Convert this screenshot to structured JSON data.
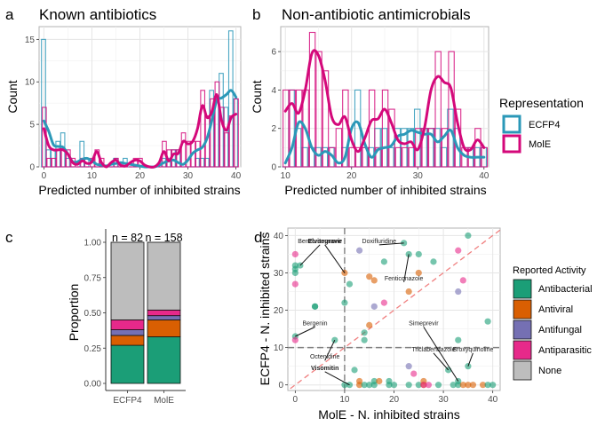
{
  "colors": {
    "ecfp4": "#2b98b8",
    "mole": "#d4087a",
    "Antibacterial": "#1b9e77",
    "Antiviral": "#d95f02",
    "Antifungal": "#7570b3",
    "Antiparasitic": "#e7298a",
    "None": "#bdbdbd"
  },
  "chart_data": [
    {
      "panel": "a",
      "type": "bar",
      "title": "Known antibiotics",
      "xlabel": "Predicted number of inhibited strains",
      "ylabel": "Count",
      "xlim": [
        -1,
        41
      ],
      "ylim": [
        0,
        16.5
      ],
      "xticks": [
        0,
        10,
        20,
        30,
        40
      ],
      "yticks": [
        0,
        5,
        10,
        15
      ],
      "grid": true,
      "x": [
        0,
        1,
        2,
        3,
        4,
        5,
        6,
        7,
        8,
        9,
        10,
        11,
        12,
        13,
        14,
        15,
        16,
        17,
        18,
        19,
        20,
        21,
        22,
        23,
        24,
        25,
        26,
        27,
        28,
        29,
        30,
        31,
        32,
        33,
        34,
        35,
        36,
        37,
        38,
        39,
        40
      ],
      "series": [
        {
          "name": "ECFP4",
          "values": [
            15,
            2,
            2,
            3,
            4,
            1,
            0,
            0,
            3,
            1,
            0,
            0,
            0,
            0,
            0,
            1,
            0,
            1,
            0,
            0,
            0,
            0,
            0,
            0,
            0,
            1,
            1,
            2,
            2,
            0,
            0,
            0,
            1,
            1,
            1,
            9,
            8,
            11,
            7,
            16,
            8
          ],
          "density": [
            5.4,
            4.2,
            2.6,
            2.4,
            2.3,
            1.5,
            0.6,
            0.6,
            0.9,
            1.0,
            0.7,
            0.3,
            0.2,
            0.1,
            0.3,
            0.4,
            0.5,
            0.4,
            0.3,
            0.2,
            0.1,
            0.0,
            0.0,
            0.0,
            0.2,
            0.5,
            0.7,
            0.8,
            0.5,
            0.3,
            0.8,
            1.6,
            2.0,
            2.3,
            3.4,
            5.5,
            7.8,
            8.1,
            8.5,
            9.0,
            8.2
          ]
        },
        {
          "name": "MolE",
          "values": [
            7,
            1,
            1,
            2,
            2,
            2,
            1,
            0,
            1,
            0,
            1,
            2,
            1,
            0,
            0,
            1,
            0,
            0,
            0,
            1,
            1,
            0,
            0,
            0,
            0,
            3,
            2,
            2,
            2,
            4,
            3,
            3,
            3,
            9,
            6,
            8,
            10,
            7,
            4,
            6,
            8
          ],
          "density": [
            4.5,
            2.5,
            2.0,
            2.0,
            2.0,
            1.5,
            0.5,
            0.3,
            0.7,
            0.4,
            0.6,
            1.8,
            0.5,
            0.0,
            0.5,
            0.8,
            0.2,
            0.1,
            0.5,
            0.8,
            0.7,
            0.2,
            0.0,
            0.0,
            0.5,
            1.8,
            0.7,
            1.5,
            1.6,
            3.0,
            2.7,
            3.0,
            4.5,
            7.2,
            5.8,
            6.5,
            8.5,
            5.5,
            4.3,
            5.8,
            6.2
          ]
        }
      ]
    },
    {
      "panel": "b",
      "type": "bar",
      "title": "Non-antibiotic antimicrobials",
      "xlabel": "Predicted number of inhibited strains",
      "ylabel": "Count",
      "xlim": [
        9.3,
        40.7
      ],
      "ylim": [
        0,
        7.3
      ],
      "xticks": [
        10,
        20,
        30,
        40
      ],
      "yticks": [
        0,
        2,
        4,
        6
      ],
      "grid": true,
      "x": [
        10,
        11,
        12,
        13,
        14,
        15,
        16,
        17,
        18,
        19,
        20,
        21,
        22,
        23,
        24,
        25,
        26,
        27,
        28,
        29,
        30,
        31,
        32,
        33,
        34,
        35,
        36,
        37,
        38,
        39,
        40
      ],
      "series": [
        {
          "name": "ECFP4",
          "values": [
            0,
            4,
            2,
            1,
            1,
            1,
            1,
            1,
            0,
            1,
            0,
            4,
            1,
            1,
            2,
            2,
            1,
            2,
            2,
            2,
            3,
            2,
            2,
            2,
            1,
            3,
            2,
            0,
            1,
            1,
            1
          ],
          "density": [
            0.2,
            1.0,
            2.3,
            2.0,
            1.0,
            0.6,
            0.8,
            0.6,
            0.2,
            0.5,
            2.0,
            2.3,
            1.2,
            0.5,
            0.9,
            1.0,
            1.1,
            1.6,
            1.7,
            1.9,
            1.8,
            1.7,
            1.7,
            1.3,
            1.6,
            1.9,
            1.0,
            0.6,
            0.5,
            0.5,
            0.5
          ]
        },
        {
          "name": "MolE",
          "values": [
            4,
            4,
            4,
            4,
            7,
            6,
            5,
            1,
            2,
            4,
            1,
            1,
            1,
            4,
            1,
            4,
            3,
            1,
            1,
            1,
            2,
            2,
            2,
            6,
            2,
            6,
            3,
            1,
            1,
            2,
            1
          ],
          "density": [
            2.9,
            3.3,
            2.8,
            4.0,
            5.9,
            5.8,
            4.5,
            2.6,
            2.2,
            2.6,
            1.4,
            0.8,
            1.5,
            2.4,
            2.5,
            3.0,
            2.3,
            1.4,
            1.2,
            1.3,
            0.9,
            2.0,
            4.0,
            4.7,
            4.4,
            4.1,
            2.3,
            1.0,
            0.9,
            1.4,
            1.0
          ]
        }
      ]
    },
    {
      "panel": "c",
      "type": "bar",
      "stacked": true,
      "xlabel": "",
      "ylabel": "Proportion",
      "categories": [
        "ECFP4",
        "MolE"
      ],
      "annotations": [
        "n = 82",
        "n = 158"
      ],
      "yticks": [
        "0.00",
        "0.25",
        "0.50",
        "0.75",
        "1.00"
      ],
      "ylim": [
        0,
        1.05
      ],
      "series": [
        {
          "name": "Antibacterial",
          "values": [
            0.27,
            0.33
          ]
        },
        {
          "name": "Antiviral",
          "values": [
            0.07,
            0.12
          ]
        },
        {
          "name": "Antifungal",
          "values": [
            0.04,
            0.03
          ]
        },
        {
          "name": "Antiparasitic",
          "values": [
            0.07,
            0.04
          ]
        },
        {
          "name": "None",
          "values": [
            0.55,
            0.48
          ]
        }
      ]
    },
    {
      "panel": "d",
      "type": "scatter",
      "xlabel": "MolE - N. inhibited strains",
      "ylabel": "ECFP4 - N. inhibited strains",
      "xlim": [
        -1.5,
        41.5
      ],
      "ylim": [
        -1.5,
        42
      ],
      "xticks": [
        0,
        10,
        20,
        30,
        40
      ],
      "yticks": [
        0,
        10,
        20,
        30,
        40
      ],
      "grid": true,
      "reference_lines": {
        "vline": 10,
        "hline": 10,
        "diagonal": true
      },
      "legend_title": "Reported Activity",
      "legend": [
        "Antibacterial",
        "Antiviral",
        "Antifungal",
        "Antiparasitic",
        "None"
      ],
      "points": [
        {
          "x": 0,
          "y": 35,
          "c": "Antiparasitic"
        },
        {
          "x": 0,
          "y": 32,
          "c": "Antibacterial"
        },
        {
          "x": 1,
          "y": 32,
          "c": "Antibacterial"
        },
        {
          "x": 0,
          "y": 31,
          "c": "Antibacterial"
        },
        {
          "x": 0,
          "y": 30,
          "c": "Antibacterial"
        },
        {
          "x": 0,
          "y": 27,
          "c": "Antiparasitic"
        },
        {
          "x": 4,
          "y": 21,
          "c": "Antibacterial"
        },
        {
          "x": 4,
          "y": 21,
          "c": "Antibacterial"
        },
        {
          "x": 0,
          "y": 13,
          "c": "Antibacterial"
        },
        {
          "x": 0,
          "y": 12,
          "c": "Antiparasitic"
        },
        {
          "x": 8,
          "y": 12,
          "c": "Antibacterial"
        },
        {
          "x": 10,
          "y": 30,
          "c": "Antiviral"
        },
        {
          "x": 10,
          "y": 22,
          "c": "Antibacterial"
        },
        {
          "x": 11,
          "y": 27,
          "c": "Antibacterial"
        },
        {
          "x": 13,
          "y": 36,
          "c": "Antifungal"
        },
        {
          "x": 15,
          "y": 29,
          "c": "Antiviral"
        },
        {
          "x": 16,
          "y": 28,
          "c": "Antiviral"
        },
        {
          "x": 16,
          "y": 21,
          "c": "Antifungal"
        },
        {
          "x": 18,
          "y": 33,
          "c": "Antibacterial"
        },
        {
          "x": 18,
          "y": 22,
          "c": "Antiparasitic"
        },
        {
          "x": 22,
          "y": 38,
          "c": "Antibacterial"
        },
        {
          "x": 23,
          "y": 35,
          "c": "Antibacterial"
        },
        {
          "x": 25,
          "y": 35,
          "c": "Antibacterial"
        },
        {
          "x": 25,
          "y": 30,
          "c": "Antiviral"
        },
        {
          "x": 23,
          "y": 25,
          "c": "Antiviral"
        },
        {
          "x": 28,
          "y": 33,
          "c": "Antibacterial"
        },
        {
          "x": 33,
          "y": 36,
          "c": "Antiparasitic"
        },
        {
          "x": 35,
          "y": 40,
          "c": "Antibacterial"
        },
        {
          "x": 34,
          "y": 28,
          "c": "Antiparasitic"
        },
        {
          "x": 33,
          "y": 25,
          "c": "Antifungal"
        },
        {
          "x": 39,
          "y": 17,
          "c": "Antibacterial"
        },
        {
          "x": 15,
          "y": 16,
          "c": "Antiviral"
        },
        {
          "x": 14,
          "y": 14,
          "c": "Antibacterial"
        },
        {
          "x": 14,
          "y": 12,
          "c": "Antibacterial"
        },
        {
          "x": 33,
          "y": 12,
          "c": "Antibacterial"
        },
        {
          "x": 12,
          "y": 4,
          "c": "Antibacterial"
        },
        {
          "x": 23,
          "y": 5,
          "c": "Antifungal"
        },
        {
          "x": 24,
          "y": 3,
          "c": "Antiparasitic"
        },
        {
          "x": 31,
          "y": 4,
          "c": "Antibacterial"
        },
        {
          "x": 33,
          "y": 1,
          "c": "Antibacterial"
        },
        {
          "x": 35,
          "y": 5,
          "c": "Antibacterial"
        },
        {
          "x": 10,
          "y": 0,
          "c": "Antibacterial"
        },
        {
          "x": 11,
          "y": 0,
          "c": "Antibacterial"
        },
        {
          "x": 13,
          "y": 1,
          "c": "Antiviral"
        },
        {
          "x": 13,
          "y": 0,
          "c": "Antiviral"
        },
        {
          "x": 14,
          "y": 0,
          "c": "Antibacterial"
        },
        {
          "x": 15,
          "y": 0,
          "c": "Antibacterial"
        },
        {
          "x": 16,
          "y": 1,
          "c": "Antibacterial"
        },
        {
          "x": 16,
          "y": 0,
          "c": "Antibacterial"
        },
        {
          "x": 17,
          "y": 1,
          "c": "Antiviral"
        },
        {
          "x": 19,
          "y": 1,
          "c": "Antibacterial"
        },
        {
          "x": 19,
          "y": 0,
          "c": "Antibacterial"
        },
        {
          "x": 20,
          "y": 0,
          "c": "Antibacterial"
        },
        {
          "x": 23,
          "y": 0,
          "c": "Antibacterial"
        },
        {
          "x": 25,
          "y": 0,
          "c": "Antibacterial"
        },
        {
          "x": 26,
          "y": 1,
          "c": "Antiviral"
        },
        {
          "x": 26,
          "y": 0,
          "c": "Antiviral"
        },
        {
          "x": 26,
          "y": 0,
          "c": "Antiparasitic"
        },
        {
          "x": 27,
          "y": 0,
          "c": "Antiparasitic"
        },
        {
          "x": 29,
          "y": 0,
          "c": "Antibacterial"
        },
        {
          "x": 32,
          "y": 0,
          "c": "Antibacterial"
        },
        {
          "x": 33,
          "y": 0,
          "c": "Antibacterial"
        },
        {
          "x": 34,
          "y": 0,
          "c": "Antiviral"
        },
        {
          "x": 35,
          "y": 0,
          "c": "Antiviral"
        },
        {
          "x": 36,
          "y": 0,
          "c": "Antiviral"
        },
        {
          "x": 38,
          "y": 0,
          "c": "Antiviral"
        },
        {
          "x": 39,
          "y": 0,
          "c": "Antibacterial"
        },
        {
          "x": 40,
          "y": 0,
          "c": "Antibacterial"
        }
      ],
      "labels": [
        {
          "text": "Bergenin",
          "x": 0,
          "y": 13,
          "lx": 4,
          "ly": 16
        },
        {
          "text": "Octenidine",
          "x": 8,
          "y": 12,
          "lx": 6,
          "ly": 7
        },
        {
          "text": "Visomitin",
          "x": 11,
          "y": 0,
          "lx": 6,
          "ly": 4,
          "bold": true
        },
        {
          "text": "Elvitegravir",
          "x": 10,
          "y": 30,
          "lx": 6,
          "ly": 38,
          "bold": true
        },
        {
          "text": "Benzbromarone",
          "x": 1,
          "y": 32,
          "lx": 5,
          "ly": 38
        },
        {
          "text": "Doxifluridine",
          "x": 22,
          "y": 38,
          "lx": 17,
          "ly": 38
        },
        {
          "text": "Fenticonazole",
          "x": 23,
          "y": 35,
          "lx": 22,
          "ly": 28
        },
        {
          "text": "Simeprevir",
          "x": 33,
          "y": 1,
          "lx": 26,
          "ly": 16
        },
        {
          "text": "Triclabendazole",
          "x": 31,
          "y": 4,
          "lx": 28,
          "ly": 9
        },
        {
          "text": "Broxyquinoline",
          "x": 35,
          "y": 5,
          "lx": 36,
          "ly": 9
        }
      ]
    }
  ],
  "panels": {
    "a": {
      "tag": "a",
      "title": "Known antibiotics",
      "xlabel": "Predicted number of inhibited strains",
      "ylabel": "Count"
    },
    "b": {
      "tag": "b",
      "title": "Non-antibiotic antimicrobials",
      "xlabel": "Predicted number of inhibited strains",
      "ylabel": "Count"
    },
    "c": {
      "tag": "c",
      "ylabel": "Proportion"
    },
    "d": {
      "tag": "d",
      "xlabel": "MolE - N. inhibited strains",
      "ylabel": "ECFP4 - N. inhibited strains"
    }
  },
  "legend_rep": {
    "title": "Representation",
    "items": [
      "ECFP4",
      "MolE"
    ]
  },
  "legend_act": {
    "title": "Reported Activity",
    "items": [
      "Antibacterial",
      "Antiviral",
      "Antifungal",
      "Antiparasitic",
      "None"
    ]
  }
}
